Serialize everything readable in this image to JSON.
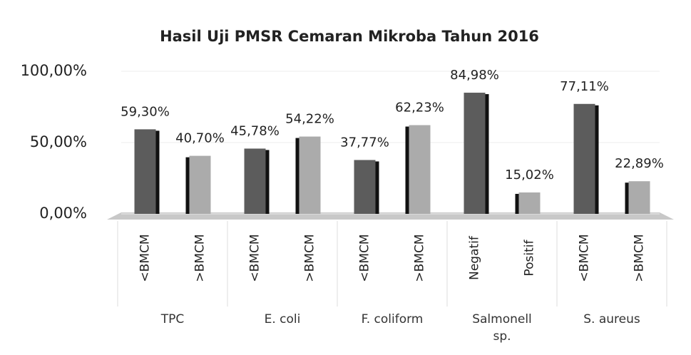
{
  "chart_data": {
    "type": "bar",
    "title": "Hasil Uji PMSR Cemaran Mikroba Tahun 2016",
    "categories": [
      "<BMCM",
      ">BMCM",
      "<BMCM",
      ">BMCM",
      "<BMCM",
      ">BMCM",
      "Negatif",
      "Positif",
      "<BMCM",
      ">BMCM"
    ],
    "groups": [
      "TPC",
      "E. coli",
      "F. coliform",
      "Salmonell sp.",
      "S. aureus"
    ],
    "values": [
      59.3,
      40.7,
      45.78,
      54.22,
      37.77,
      62.23,
      84.98,
      15.02,
      77.11,
      22.89
    ],
    "value_labels": [
      "59,30%",
      "40,70%",
      "45,78%",
      "54,22%",
      "37,77%",
      "62,23%",
      "84,98%",
      "15,02%",
      "77,11%",
      "22,89%"
    ],
    "colors": [
      "#5c5c5c",
      "#ababab",
      "#5c5c5c",
      "#ababab",
      "#5c5c5c",
      "#ababab",
      "#5c5c5c",
      "#ababab",
      "#5c5c5c",
      "#ababab"
    ],
    "ylim": [
      0,
      100
    ],
    "yticks": [
      {
        "value": 0,
        "label": "0,00%"
      },
      {
        "value": 50,
        "label": "50,00%"
      },
      {
        "value": 100,
        "label": "100,00%"
      }
    ],
    "grid": true
  }
}
